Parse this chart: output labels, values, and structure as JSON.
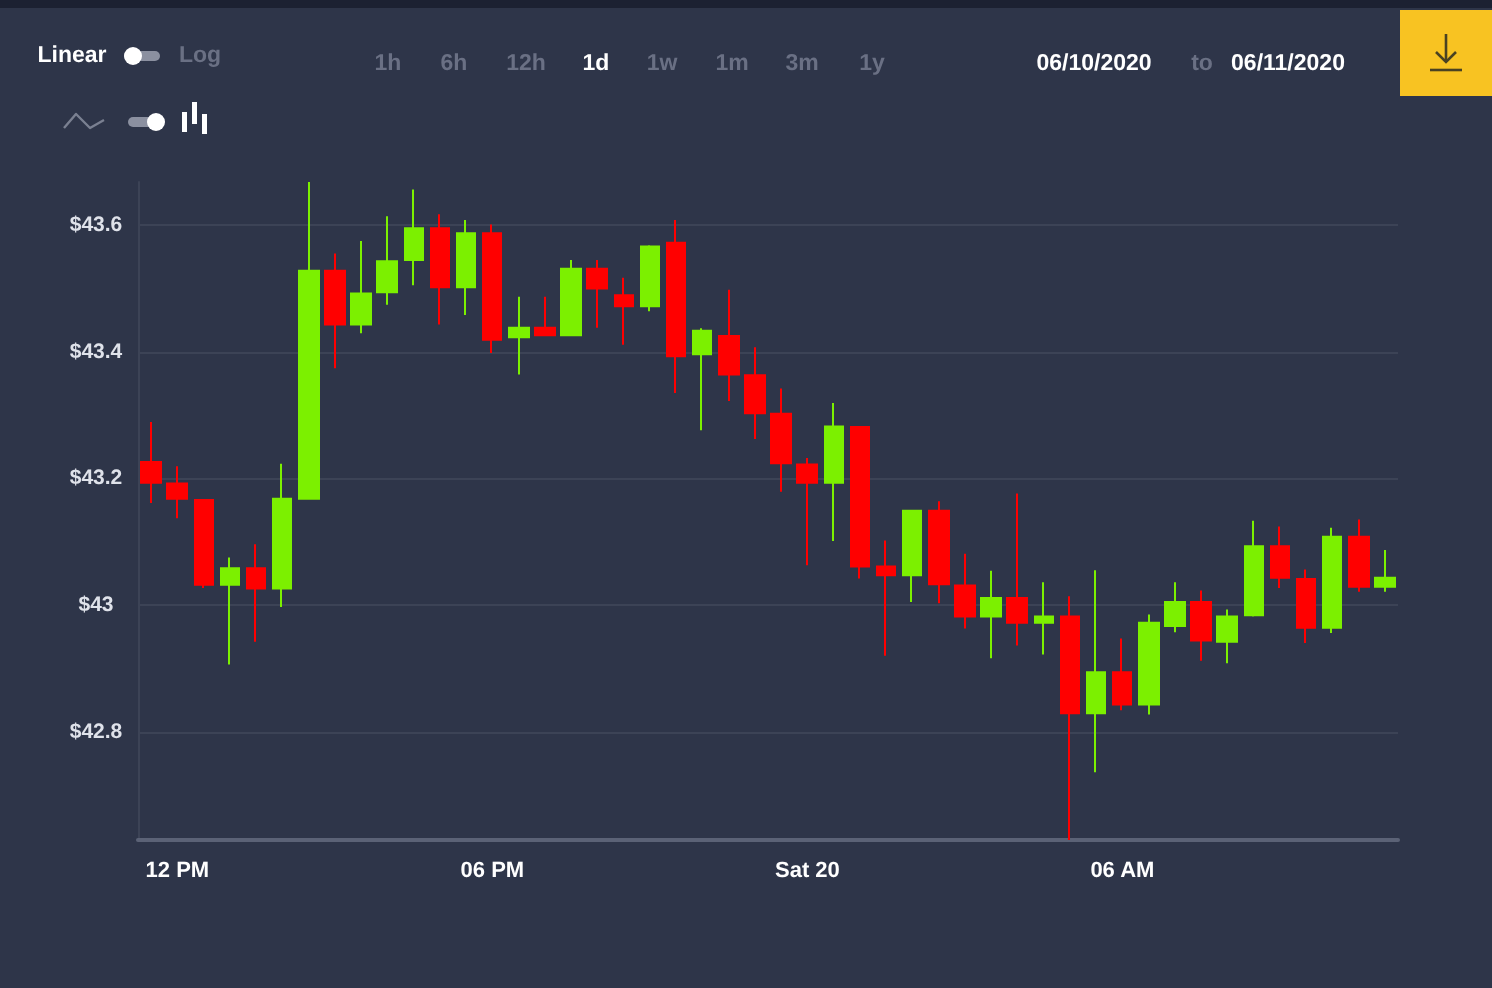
{
  "chart_data": {
    "type": "candlestick",
    "annotations": [
      "Linear",
      "Log",
      "1h",
      "6h",
      "12h",
      "1d",
      "1w",
      "1m",
      "3m",
      "1y",
      "06/10/2020",
      "to",
      "06/11/2020"
    ],
    "x": [
      "2020-06-19T11:30",
      "2020-06-19T12:00",
      "2020-06-19T12:30",
      "2020-06-19T13:00",
      "2020-06-19T13:30",
      "2020-06-19T14:00",
      "2020-06-19T14:30",
      "2020-06-19T15:00",
      "2020-06-19T15:30",
      "2020-06-19T16:00",
      "2020-06-19T16:30",
      "2020-06-19T17:00",
      "2020-06-19T17:30",
      "2020-06-19T18:00",
      "2020-06-19T18:30",
      "2020-06-19T19:00",
      "2020-06-19T19:30",
      "2020-06-19T20:00",
      "2020-06-19T20:30",
      "2020-06-19T21:00",
      "2020-06-19T21:30",
      "2020-06-19T22:00",
      "2020-06-19T22:30",
      "2020-06-19T23:00",
      "2020-06-19T23:30",
      "2020-06-20T00:00",
      "2020-06-20T00:30",
      "2020-06-20T01:00",
      "2020-06-20T01:30",
      "2020-06-20T02:00",
      "2020-06-20T02:30",
      "2020-06-20T03:00",
      "2020-06-20T03:30",
      "2020-06-20T04:00",
      "2020-06-20T04:30",
      "2020-06-20T05:00",
      "2020-06-20T05:30",
      "2020-06-20T06:00",
      "2020-06-20T06:30",
      "2020-06-20T07:00",
      "2020-06-20T07:30",
      "2020-06-20T08:00",
      "2020-06-20T08:30",
      "2020-06-20T09:00",
      "2020-06-20T09:30",
      "2020-06-20T10:00",
      "2020-06-20T10:30",
      "2020-06-20T11:00"
    ],
    "ohlc": [
      [
        43.226,
        43.289,
        43.161,
        43.193
      ],
      [
        43.192,
        43.219,
        43.137,
        43.168
      ],
      [
        43.166,
        43.166,
        43.027,
        43.032
      ],
      [
        43.032,
        43.075,
        42.906,
        43.058
      ],
      [
        43.058,
        43.096,
        42.942,
        43.026
      ],
      [
        43.026,
        43.223,
        42.997,
        43.168
      ],
      [
        43.168,
        43.668,
        43.168,
        43.528
      ],
      [
        43.528,
        43.555,
        43.374,
        43.443
      ],
      [
        43.443,
        43.575,
        43.429,
        43.492
      ],
      [
        43.494,
        43.614,
        43.474,
        43.543
      ],
      [
        43.545,
        43.656,
        43.505,
        43.595
      ],
      [
        43.595,
        43.617,
        43.443,
        43.502
      ],
      [
        43.502,
        43.608,
        43.458,
        43.587
      ],
      [
        43.587,
        43.601,
        43.398,
        43.419
      ],
      [
        43.423,
        43.487,
        43.364,
        43.438
      ],
      [
        43.438,
        43.487,
        43.426,
        43.426
      ],
      [
        43.426,
        43.545,
        43.426,
        43.531
      ],
      [
        43.531,
        43.545,
        43.438,
        43.5
      ],
      [
        43.489,
        43.517,
        43.411,
        43.472
      ],
      [
        43.472,
        43.568,
        43.464,
        43.566
      ],
      [
        43.572,
        43.608,
        43.335,
        43.393
      ],
      [
        43.396,
        43.437,
        43.276,
        43.433
      ],
      [
        43.425,
        43.498,
        43.322,
        43.364
      ],
      [
        43.363,
        43.407,
        43.262,
        43.303
      ],
      [
        43.302,
        43.342,
        43.179,
        43.224
      ],
      [
        43.222,
        43.232,
        43.063,
        43.193
      ],
      [
        43.193,
        43.319,
        43.101,
        43.282
      ],
      [
        43.281,
        43.282,
        43.042,
        43.061
      ],
      [
        43.061,
        43.102,
        42.92,
        43.047
      ],
      [
        43.047,
        43.149,
        43.005,
        43.149
      ],
      [
        43.149,
        43.164,
        43.003,
        43.033
      ],
      [
        43.031,
        43.081,
        42.963,
        42.982
      ],
      [
        42.982,
        43.054,
        42.916,
        43.011
      ],
      [
        43.011,
        43.176,
        42.936,
        42.972
      ],
      [
        42.972,
        43.036,
        42.922,
        42.982
      ],
      [
        42.982,
        43.014,
        42.629,
        42.829
      ],
      [
        42.829,
        43.055,
        42.736,
        42.894
      ],
      [
        42.894,
        42.947,
        42.834,
        42.843
      ],
      [
        42.843,
        42.985,
        42.827,
        42.972
      ],
      [
        42.967,
        43.036,
        42.957,
        43.005
      ],
      [
        43.005,
        43.023,
        42.912,
        42.944
      ],
      [
        42.942,
        42.993,
        42.908,
        42.982
      ],
      [
        42.984,
        43.133,
        42.982,
        43.093
      ],
      [
        43.093,
        43.124,
        43.027,
        43.043
      ],
      [
        43.041,
        43.056,
        42.94,
        42.964
      ],
      [
        42.964,
        43.122,
        42.956,
        43.108
      ],
      [
        43.108,
        43.135,
        43.021,
        43.029
      ],
      [
        43.029,
        43.087,
        43.021,
        43.043
      ]
    ],
    "colors": [
      "#ff0000",
      "#ff0000",
      "#ff0000",
      "#7cf000",
      "#ff0000",
      "#7cf000",
      "#7cf000",
      "#ff0000",
      "#7cf000",
      "#7cf000",
      "#7cf000",
      "#ff0000",
      "#7cf000",
      "#ff0000",
      "#7cf000",
      "#ff0000",
      "#7cf000",
      "#ff0000",
      "#ff0000",
      "#7cf000",
      "#ff0000",
      "#7cf000",
      "#ff0000",
      "#ff0000",
      "#ff0000",
      "#ff0000",
      "#7cf000",
      "#ff0000",
      "#ff0000",
      "#7cf000",
      "#ff0000",
      "#ff0000",
      "#7cf000",
      "#ff0000",
      "#7cf000",
      "#ff0000",
      "#7cf000",
      "#ff0000",
      "#7cf000",
      "#7cf000",
      "#ff0000",
      "#7cf000",
      "#7cf000",
      "#ff0000",
      "#ff0000",
      "#7cf000",
      "#ff0000",
      "#7cf000"
    ],
    "xlim": [
      "2020-06-19T11:15",
      "2020-06-20T11:15"
    ],
    "xticks": [
      {
        "value": "2020-06-19T12:00",
        "label": "12 PM"
      },
      {
        "value": "2020-06-19T18:00",
        "label": "06 PM"
      },
      {
        "value": "2020-06-20T00:00",
        "label": "Sat 20"
      },
      {
        "value": "2020-06-20T06:00",
        "label": "06 AM"
      }
    ],
    "ylim": [
      42.629,
      43.668
    ],
    "yticks": [
      {
        "value": 42.8,
        "label": "$42.8"
      },
      {
        "value": 43,
        "label": "$43"
      },
      {
        "value": 43.2,
        "label": "$43.2"
      },
      {
        "value": 43.4,
        "label": "$43.4"
      },
      {
        "value": 43.6,
        "label": "$43.6"
      }
    ],
    "grid": "y"
  }
}
